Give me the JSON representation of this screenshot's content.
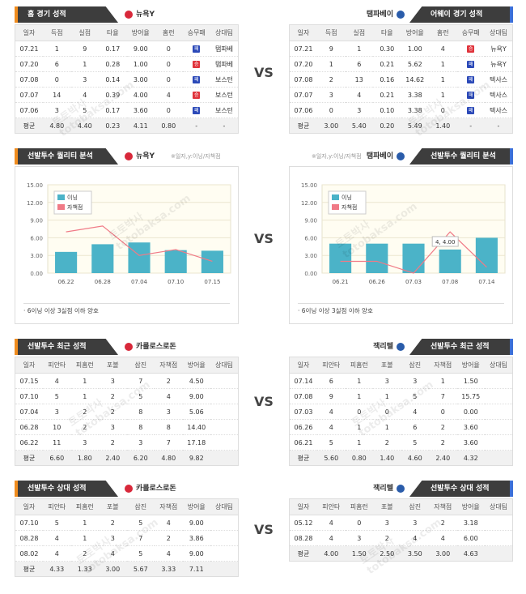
{
  "vs": "VS",
  "watermark": [
    "토토박사",
    "totobaksa.com"
  ],
  "sections": [
    {
      "left": {
        "title": "홈 경기 성적",
        "team": "뉴욕Y",
        "logo_color": "#d8283a",
        "accent": "#f08c1e",
        "columns": [
          "일자",
          "득점",
          "실점",
          "타율",
          "방어율",
          "홈런",
          "승무패",
          "상대팀"
        ],
        "rows": [
          [
            "07.21",
            "1",
            "9",
            "0.17",
            "9.00",
            "0",
            {
              "label": "패",
              "color": "#2b49b8"
            },
            "탬파베"
          ],
          [
            "07.20",
            "6",
            "1",
            "0.28",
            "1.00",
            "0",
            {
              "label": "승",
              "color": "#e0343c"
            },
            "탬파베"
          ],
          [
            "07.08",
            "0",
            "3",
            "0.14",
            "3.00",
            "0",
            {
              "label": "패",
              "color": "#2b49b8"
            },
            "보스턴"
          ],
          [
            "07.07",
            "14",
            "4",
            "0.39",
            "4.00",
            "4",
            {
              "label": "승",
              "color": "#e0343c"
            },
            "보스턴"
          ],
          [
            "07.06",
            "3",
            "5",
            "0.17",
            "3.60",
            "0",
            {
              "label": "패",
              "color": "#2b49b8"
            },
            "보스턴"
          ]
        ],
        "average": [
          "평균",
          "4.80",
          "4.40",
          "0.23",
          "4.11",
          "0.80",
          "-",
          "-"
        ]
      },
      "right": {
        "title": "어웨이 경기 성적",
        "team": "탬파베이",
        "logo_color": "#2a5caa",
        "accent": "#3b6fd8",
        "columns": [
          "일자",
          "득점",
          "실점",
          "타율",
          "방어율",
          "홈런",
          "승무패",
          "상대팀"
        ],
        "rows": [
          [
            "07.21",
            "9",
            "1",
            "0.30",
            "1.00",
            "4",
            {
              "label": "승",
              "color": "#e0343c"
            },
            "뉴욕Y"
          ],
          [
            "07.20",
            "1",
            "6",
            "0.21",
            "5.62",
            "1",
            {
              "label": "패",
              "color": "#2b49b8"
            },
            "뉴욕Y"
          ],
          [
            "07.08",
            "2",
            "13",
            "0.16",
            "14.62",
            "1",
            {
              "label": "패",
              "color": "#2b49b8"
            },
            "텍사스"
          ],
          [
            "07.07",
            "3",
            "4",
            "0.21",
            "3.38",
            "1",
            {
              "label": "패",
              "color": "#2b49b8"
            },
            "텍사스"
          ],
          [
            "07.06",
            "0",
            "3",
            "0.10",
            "3.38",
            "0",
            {
              "label": "패",
              "color": "#2b49b8"
            },
            "텍사스"
          ]
        ],
        "average": [
          "평균",
          "3.00",
          "5.40",
          "0.20",
          "5.49",
          "1.40",
          "-",
          "-"
        ]
      }
    },
    {
      "left": {
        "title": "선발투수 퀄리티 분석",
        "team": "뉴욕Y",
        "logo_color": "#d8283a",
        "accent": "#f08c1e",
        "axis_note": "※일자,y:이닝/자책점",
        "chart": {
          "type": "bar",
          "categories": [
            "06.22",
            "06.28",
            "07.04",
            "07.10",
            "07.15"
          ],
          "series": [
            {
              "name": "이닝",
              "color": "#4bb3c8",
              "type": "bar",
              "values": [
                3.6,
                4.9,
                5.2,
                3.9,
                3.8
              ]
            },
            {
              "name": "자책점",
              "color": "#f07a86",
              "type": "line",
              "values": [
                7,
                8,
                3,
                4,
                2
              ]
            }
          ],
          "ylim": [
            0,
            15
          ],
          "yticks": [
            {
              "value": 0,
              "label": "0.00"
            },
            {
              "value": 3,
              "label": "3.00"
            },
            {
              "value": 6,
              "label": "6.00"
            },
            {
              "value": 9,
              "label": "9.00"
            },
            {
              "value": 12,
              "label": "12.00"
            },
            {
              "value": 15,
              "label": "15.00"
            }
          ]
        },
        "note": "· 6이닝 이상 3실점 이하 양호"
      },
      "right": {
        "title": "선발투수 퀄리티 분석",
        "team": "탬파베이",
        "logo_color": "#2a5caa",
        "accent": "#3b6fd8",
        "axis_note": "※일자,y:이닝/자책점",
        "chart": {
          "type": "bar",
          "categories": [
            "06.21",
            "06.26",
            "07.03",
            "07.08",
            "07.14"
          ],
          "series": [
            {
              "name": "이닝",
              "color": "#4bb3c8",
              "type": "bar",
              "values": [
                5,
                5,
                5,
                4,
                6
              ]
            },
            {
              "name": "자책점",
              "color": "#f07a86",
              "type": "line",
              "values": [
                2,
                2,
                0,
                7,
                1
              ]
            }
          ],
          "ylim": [
            0,
            15
          ],
          "yticks": [
            {
              "value": 0,
              "label": "0.00"
            },
            {
              "value": 3,
              "label": "3.00"
            },
            {
              "value": 6,
              "label": "6.00"
            },
            {
              "value": 9,
              "label": "9.00"
            },
            {
              "value": 12,
              "label": "12.00"
            },
            {
              "value": 15,
              "label": "15.00"
            }
          ],
          "annotation": "4, 4.00"
        },
        "note": "· 6이닝 이상 3실점 이하 양호"
      }
    },
    {
      "left": {
        "title": "선발투수 최근 성적",
        "team": "카를로스로돈",
        "logo_color": "#d8283a",
        "accent": "#f08c1e",
        "columns": [
          "일자",
          "피안타",
          "피홈런",
          "포볼",
          "삼진",
          "자책점",
          "방어율",
          "상대팀"
        ],
        "rows": [
          [
            "07.15",
            "4",
            "1",
            "3",
            "7",
            "2",
            "4.50"
          ],
          [
            "07.10",
            "5",
            "1",
            "2",
            "5",
            "4",
            "9.00"
          ],
          [
            "07.04",
            "3",
            "2",
            "2",
            "8",
            "3",
            "5.06"
          ],
          [
            "06.28",
            "10",
            "2",
            "3",
            "8",
            "8",
            "14.40"
          ],
          [
            "06.22",
            "11",
            "3",
            "2",
            "3",
            "7",
            "17.18"
          ]
        ],
        "average": [
          "평균",
          "6.60",
          "1.80",
          "2.40",
          "6.20",
          "4.80",
          "9.82"
        ]
      },
      "right": {
        "title": "선발투수 최근 성적",
        "team": "잭리텔",
        "logo_color": "#2a5caa",
        "accent": "#3b6fd8",
        "columns": [
          "일자",
          "피안타",
          "피홈런",
          "포볼",
          "삼진",
          "자책점",
          "방어율",
          "상대팀"
        ],
        "rows": [
          [
            "07.14",
            "6",
            "1",
            "3",
            "3",
            "1",
            "1.50"
          ],
          [
            "07.08",
            "9",
            "1",
            "1",
            "5",
            "7",
            "15.75"
          ],
          [
            "07.03",
            "4",
            "0",
            "0",
            "4",
            "0",
            "0.00"
          ],
          [
            "06.26",
            "4",
            "1",
            "1",
            "6",
            "2",
            "3.60"
          ],
          [
            "06.21",
            "5",
            "1",
            "2",
            "5",
            "2",
            "3.60"
          ]
        ],
        "average": [
          "평균",
          "5.60",
          "0.80",
          "1.40",
          "4.60",
          "2.40",
          "4.32"
        ]
      }
    },
    {
      "left": {
        "title": "선발투수 상대 성적",
        "team": "카를로스로돈",
        "logo_color": "#d8283a",
        "accent": "#f08c1e",
        "columns": [
          "일자",
          "피안타",
          "피홈런",
          "포볼",
          "삼진",
          "자책점",
          "방어율",
          "상대팀"
        ],
        "rows": [
          [
            "07.10",
            "5",
            "1",
            "2",
            "5",
            "4",
            "9.00"
          ],
          [
            "08.28",
            "4",
            "1",
            "3",
            "7",
            "2",
            "3.86"
          ],
          [
            "08.02",
            "4",
            "2",
            "4",
            "5",
            "4",
            "9.00"
          ]
        ],
        "average": [
          "평균",
          "4.33",
          "1.33",
          "3.00",
          "5.67",
          "3.33",
          "7.11"
        ]
      },
      "right": {
        "title": "선발투수 상대 성적",
        "team": "잭리텔",
        "logo_color": "#2a5caa",
        "accent": "#3b6fd8",
        "columns": [
          "일자",
          "피안타",
          "피홈런",
          "포볼",
          "삼진",
          "자책점",
          "방어율",
          "상대팀"
        ],
        "rows": [
          [
            "05.12",
            "4",
            "0",
            "3",
            "3",
            "2",
            "3.18"
          ],
          [
            "08.28",
            "4",
            "3",
            "2",
            "4",
            "4",
            "6.00"
          ]
        ],
        "average": [
          "평균",
          "4.00",
          "1.50",
          "2.50",
          "3.50",
          "3.00",
          "4.63"
        ]
      }
    }
  ]
}
